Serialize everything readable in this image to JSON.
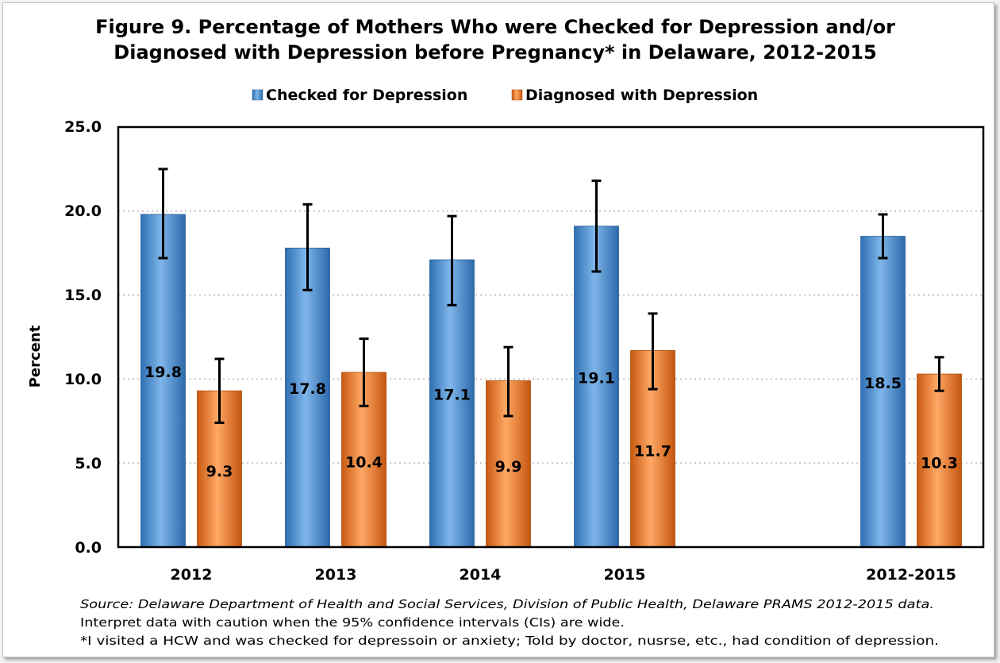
{
  "chart_data": {
    "type": "bar",
    "title_lines": [
      "Figure 9. Percentage of Mothers Who were Checked for Depression and/or",
      "Diagnosed with Depression before Pregnancy* in Delaware, 2012-2015"
    ],
    "categories": [
      "2012",
      "2013",
      "2014",
      "2015",
      "2012-2015"
    ],
    "series": [
      {
        "name": "Checked for Depression",
        "color": "#4f94d8",
        "values": [
          19.8,
          17.8,
          17.1,
          19.1,
          18.5
        ],
        "labels": [
          "19.8",
          "17.8",
          "17.1",
          "19.1",
          "18.5"
        ],
        "ci_low": [
          17.2,
          15.3,
          14.4,
          16.4,
          17.2
        ],
        "ci_high": [
          22.5,
          20.4,
          19.7,
          21.8,
          19.8
        ]
      },
      {
        "name": "Diagnosed with Depression",
        "color": "#f07d28",
        "values": [
          9.3,
          10.4,
          9.9,
          11.7,
          10.3
        ],
        "labels": [
          "9.3",
          "10.4",
          "9.9",
          "11.7",
          "10.3"
        ],
        "ci_low": [
          7.4,
          8.4,
          7.8,
          9.4,
          9.3
        ],
        "ci_high": [
          11.2,
          12.4,
          11.9,
          13.9,
          11.3
        ]
      }
    ],
    "ylabel": "Percent",
    "xlabel": "",
    "ylim": [
      0,
      25
    ],
    "yticks": [
      "0.0",
      "5.0",
      "10.0",
      "15.0",
      "20.0",
      "25.0"
    ],
    "grid": true,
    "legend_position": "top-center",
    "notes": [
      "Source: Delaware Department of Health and Social Services, Division of Public Health, Delaware PRAMS 2012-2015 data.",
      "Interpret data with caution when the 95% confidence intervals (CIs) are wide.",
      "*I visited a HCW and was checked for depressoin or anxiety; Told by doctor, nusrse, etc., had condition of depression."
    ]
  }
}
